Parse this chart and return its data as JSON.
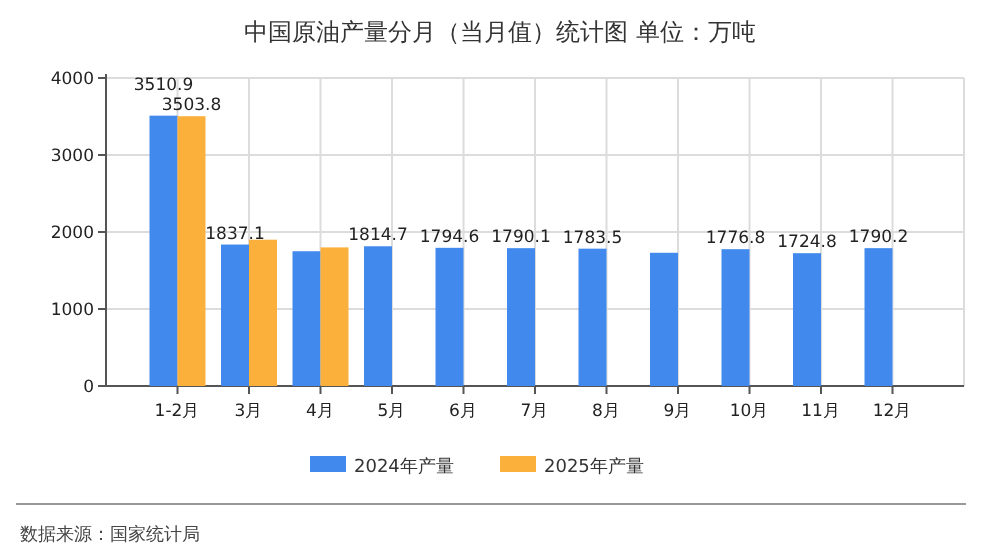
{
  "chart_data": {
    "type": "bar",
    "title": "中国原油产量分月（当月值）统计图  单位：万吨",
    "categories": [
      "1-2月",
      "3月",
      "4月",
      "5月",
      "6月",
      "7月",
      "8月",
      "9月",
      "10月",
      "11月",
      "12月"
    ],
    "series": [
      {
        "name": "2024年产量",
        "color": "#4189ec",
        "values": [
          3510.9,
          1837.1,
          1750,
          1814.7,
          1794.6,
          1790.1,
          1783.5,
          1730,
          1776.8,
          1724.8,
          1790.2
        ],
        "value_labels": [
          "3510.9",
          "1837.1",
          null,
          "1814.7",
          "1794.6",
          "1790.1",
          "1783.5",
          null,
          "1776.8",
          "1724.8",
          "1790.2"
        ]
      },
      {
        "name": "2025年产量",
        "color": "#fbb03b",
        "values": [
          3503.8,
          1900,
          1800,
          null,
          null,
          null,
          null,
          null,
          null,
          null,
          null
        ],
        "value_labels": [
          "3503.8",
          null,
          null,
          null,
          null,
          null,
          null,
          null,
          null,
          null,
          null
        ]
      }
    ],
    "ylim": [
      0,
      4000
    ],
    "yticks": [
      0,
      1000,
      2000,
      3000,
      4000
    ],
    "grid": true,
    "legend": "bottom",
    "annotations": [
      "数据来源：国家统计局"
    ]
  }
}
